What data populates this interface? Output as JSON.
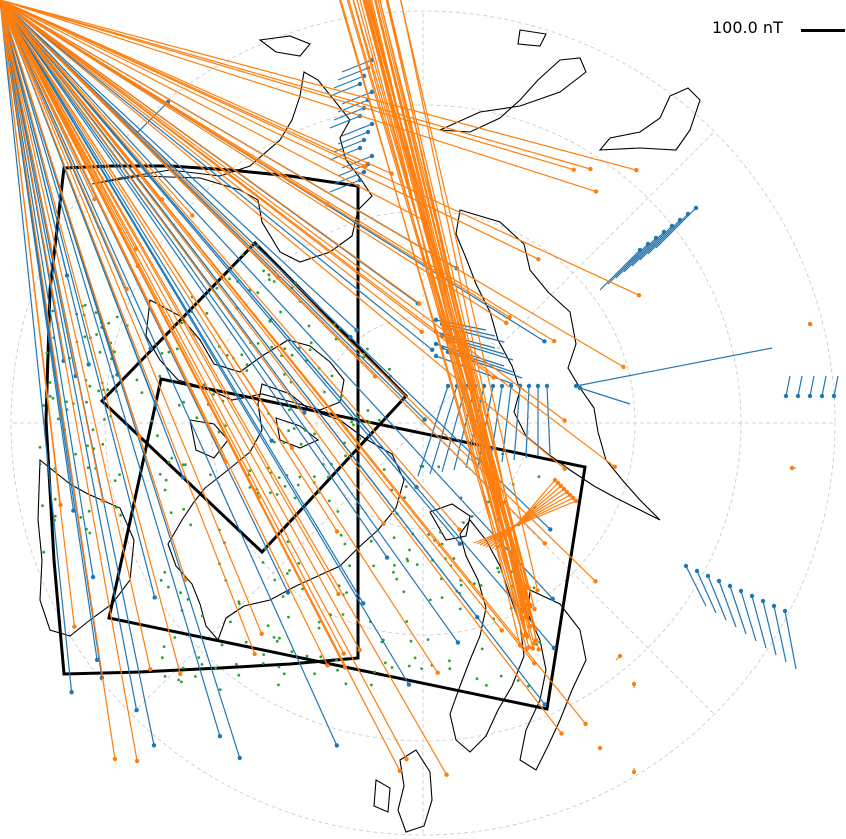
{
  "scale": {
    "label": "100.0 nT"
  },
  "colors": {
    "grid": "#c8c8c8",
    "coast": "#000000",
    "region": "#000000",
    "series_blue": "#1f77b4",
    "series_orange": "#ff7f0e",
    "grid_points": "#2ca02c"
  }
}
